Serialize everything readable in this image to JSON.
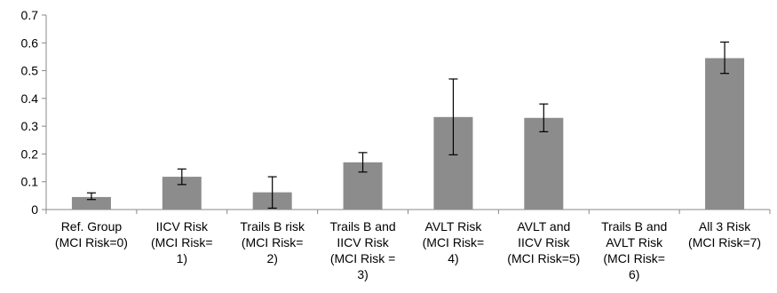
{
  "chart_data": {
    "type": "bar",
    "categories": [
      [
        "Ref. Group",
        "(MCI Risk=0)"
      ],
      [
        "IICV Risk",
        "(MCI Risk=",
        "1)"
      ],
      [
        "Trails B risk",
        "(MCI Risk=",
        "2)"
      ],
      [
        "Trails B and",
        "IICV Risk",
        "(MCI Risk =",
        "3)"
      ],
      [
        "AVLT Risk",
        "(MCI Risk=",
        "4)"
      ],
      [
        "AVLT and",
        "IICV Risk",
        "(MCI Risk=5)"
      ],
      [
        "Trails B and",
        "AVLT Risk",
        "(MCI Risk=",
        "6)"
      ],
      [
        "All 3 Risk",
        "(MCI Risk=7)"
      ]
    ],
    "values": [
      0.045,
      0.118,
      0.062,
      0.17,
      0.333,
      0.33,
      null,
      0.545
    ],
    "error_low": [
      0.036,
      0.09,
      0.005,
      0.135,
      0.197,
      0.28,
      null,
      0.49
    ],
    "error_high": [
      0.06,
      0.146,
      0.118,
      0.205,
      0.47,
      0.38,
      null,
      0.603
    ],
    "ylim": [
      0,
      0.7
    ],
    "yticks": [
      "0",
      "0.1",
      "0.2",
      "0.3",
      "0.4",
      "0.5",
      "0.6",
      "0.7"
    ],
    "grid": false,
    "colors": {
      "bar": "#8c8c8c",
      "axis": "#888888",
      "error": "#000000"
    }
  }
}
